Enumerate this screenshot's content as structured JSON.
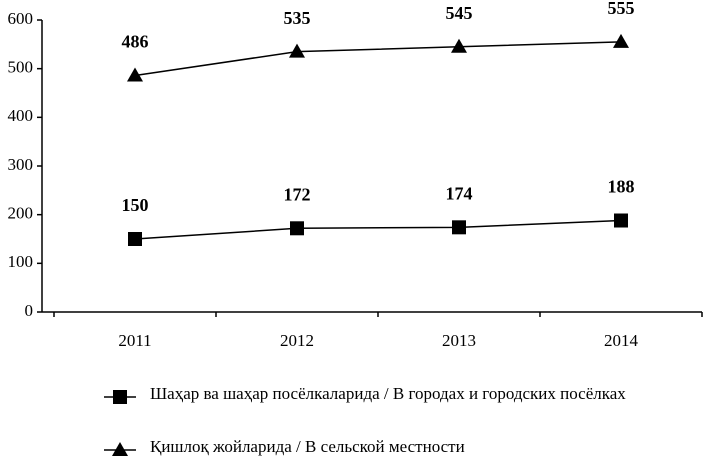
{
  "chart_data": {
    "type": "line",
    "categories": [
      "2011",
      "2012",
      "2013",
      "2014"
    ],
    "series": [
      {
        "name": "Шаҳар ва шаҳар посёлкаларида / В городах и городских посёлках",
        "color": "#000000",
        "marker": "square",
        "values": [
          150,
          172,
          174,
          188
        ]
      },
      {
        "name": "Қишлоқ жойларида / В сельской местности",
        "color": "#000000",
        "marker": "triangle",
        "values": [
          486,
          535,
          545,
          555
        ]
      }
    ],
    "ylim": [
      0,
      600
    ],
    "yticks": [
      0,
      100,
      200,
      300,
      400,
      500,
      600
    ],
    "grid": false,
    "legend": "bottom"
  }
}
